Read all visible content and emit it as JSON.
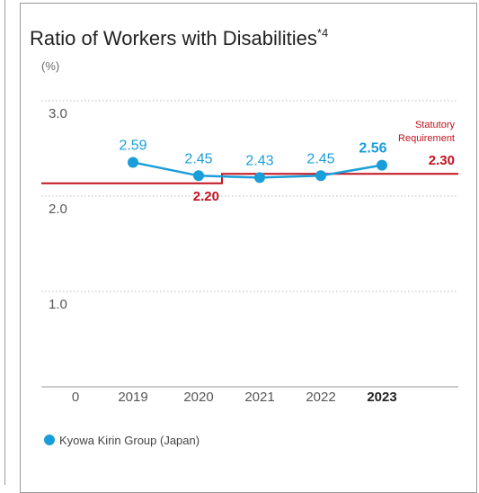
{
  "colors": {
    "series": "#1a9ed9",
    "requirement": "#c1121f",
    "grid": "#b9b9b9",
    "axis": "#9a9a9a",
    "text": "#555555"
  },
  "chart_data": {
    "type": "line",
    "title": "Ratio of Workers with Disabilities",
    "title_note": "*4",
    "unit_label": "(%)",
    "ylim": [
      0,
      3.0
    ],
    "y_ticks": [
      "0",
      "1.0",
      "2.0",
      "3.0"
    ],
    "y_tick_values": [
      0,
      1.0,
      2.0,
      3.0
    ],
    "grid": true,
    "categories": [
      "2019",
      "2020",
      "2021",
      "2022",
      "2023"
    ],
    "highlight_category": "2023",
    "series": [
      {
        "name": "Kyowa Kirin Group (Japan)",
        "values": [
          2.59,
          2.45,
          2.43,
          2.45,
          2.56
        ],
        "labels": [
          "2.59",
          "2.45",
          "2.43",
          "2.45",
          "2.56"
        ]
      }
    ],
    "requirement": {
      "label_line1": "Statutory",
      "label_line2": "Requirement",
      "steps": [
        {
          "from": "start",
          "to": "2020-2021",
          "value": 2.2,
          "label": "2.20"
        },
        {
          "from": "2020-2021",
          "to": "end",
          "value": 2.3,
          "label": "2.30"
        }
      ]
    },
    "legend": {
      "position": "bottom-left",
      "marker": "circle"
    }
  }
}
